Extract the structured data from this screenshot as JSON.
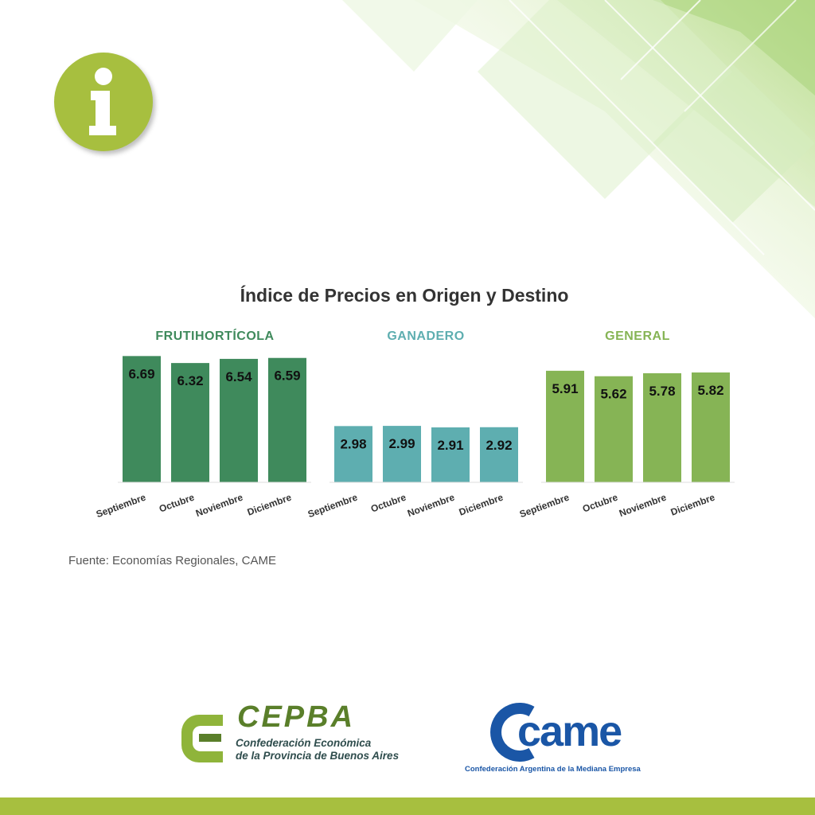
{
  "colors": {
    "frutihorticola": "#3f8a5c",
    "ganadero": "#5eaeb0",
    "general": "#86b455",
    "accent": "#a7bf3f",
    "cepba_green": "#5a7f2a",
    "came_blue": "#1a56a6"
  },
  "icons": {
    "badge": "info-icon"
  },
  "chart_data": [
    {
      "type": "bar",
      "title": "FRUTIHORTÍCOLA",
      "categories": [
        "Septiembre",
        "Octubre",
        "Noviembre",
        "Diciembre"
      ],
      "values": [
        6.69,
        6.32,
        6.54,
        6.59
      ],
      "ylim": [
        0,
        7
      ]
    },
    {
      "type": "bar",
      "title": "GANADERO",
      "categories": [
        "Septiembre",
        "Octubre",
        "Noviembre",
        "Diciembre"
      ],
      "values": [
        2.98,
        2.99,
        2.91,
        2.92
      ],
      "ylim": [
        0,
        7
      ]
    },
    {
      "type": "bar",
      "title": "GENERAL",
      "categories": [
        "Septiembre",
        "Octubre",
        "Noviembre",
        "Diciembre"
      ],
      "values": [
        5.91,
        5.62,
        5.78,
        5.82
      ],
      "ylim": [
        0,
        7
      ]
    }
  ],
  "chart_title": "Índice de Precios en Origen y Destino",
  "source": "Fuente: Economías Regionales, CAME",
  "logos": {
    "cepba": {
      "name": "CEPBA",
      "line1": "Confederación Económica",
      "line2": "de la Provincia de Buenos Aires"
    },
    "came": {
      "name": "came",
      "subtitle": "Confederación Argentina de la Mediana Empresa"
    }
  }
}
